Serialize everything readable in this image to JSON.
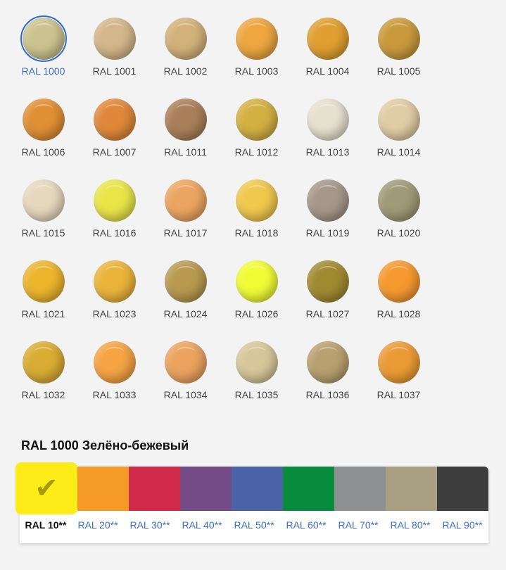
{
  "colors": [
    {
      "label": "RAL 1000",
      "color": "#cbc38f",
      "selected": true
    },
    {
      "label": "RAL 1001",
      "color": "#d3b68a"
    },
    {
      "label": "RAL 1002",
      "color": "#d3b17a"
    },
    {
      "label": "RAL 1003",
      "color": "#eda640"
    },
    {
      "label": "RAL 1004",
      "color": "#e09f30"
    },
    {
      "label": "RAL 1005",
      "color": "#c99a3c"
    },
    {
      "label": "RAL 1006",
      "color": "#e08f33"
    },
    {
      "label": "RAL 1007",
      "color": "#df883a"
    },
    {
      "label": "RAL 1011",
      "color": "#a97f59"
    },
    {
      "label": "RAL 1012",
      "color": "#d3b042"
    },
    {
      "label": "RAL 1013",
      "color": "#e6e0cf"
    },
    {
      "label": "RAL 1014",
      "color": "#e0cca5"
    },
    {
      "label": "RAL 1015",
      "color": "#e6d8bf"
    },
    {
      "label": "RAL 1016",
      "color": "#e9e548"
    },
    {
      "label": "RAL 1017",
      "color": "#eca560"
    },
    {
      "label": "RAL 1018",
      "color": "#f0c84c"
    },
    {
      "label": "RAL 1019",
      "color": "#a6978a"
    },
    {
      "label": "RAL 1020",
      "color": "#a09a78"
    },
    {
      "label": "RAL 1021",
      "color": "#ebb52c"
    },
    {
      "label": "RAL 1023",
      "color": "#eab43a"
    },
    {
      "label": "RAL 1024",
      "color": "#b8994f"
    },
    {
      "label": "RAL 1026",
      "color": "#effc34"
    },
    {
      "label": "RAL 1027",
      "color": "#a08a30"
    },
    {
      "label": "RAL 1028",
      "color": "#f5992f"
    },
    {
      "label": "RAL 1032",
      "color": "#d9ac33"
    },
    {
      "label": "RAL 1033",
      "color": "#f5a343"
    },
    {
      "label": "RAL 1034",
      "color": "#eba35e"
    },
    {
      "label": "RAL 1035",
      "color": "#d6c69a"
    },
    {
      "label": "RAL 1036",
      "color": "#b8a070"
    },
    {
      "label": "RAL 1037",
      "color": "#eb9b35"
    }
  ],
  "title": "RAL 1000 Зелёно-бежевый",
  "groups": [
    {
      "label": "RAL 10**",
      "color": "#fdec17",
      "selected": true,
      "icon": "checkmark-icon",
      "icon_glyph": "✔"
    },
    {
      "label": "RAL 20**",
      "color": "#f59927"
    },
    {
      "label": "RAL 30**",
      "color": "#d22b4a"
    },
    {
      "label": "RAL 40**",
      "color": "#744a87"
    },
    {
      "label": "RAL 50**",
      "color": "#4963a6"
    },
    {
      "label": "RAL 60**",
      "color": "#098b3d"
    },
    {
      "label": "RAL 70**",
      "color": "#8e9092"
    },
    {
      "label": "RAL 80**",
      "color": "#a99f83"
    },
    {
      "label": "RAL 90**",
      "color": "#3e3e3e"
    }
  ]
}
